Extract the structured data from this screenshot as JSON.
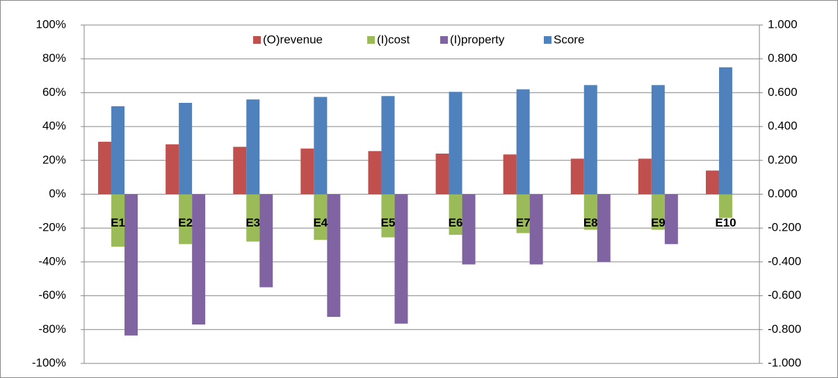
{
  "chart_data": {
    "type": "bar",
    "categories": [
      "E1",
      "E2",
      "E3",
      "E4",
      "E5",
      "E6",
      "E7",
      "E8",
      "E9",
      "E10"
    ],
    "series": [
      {
        "name": "(O)revenue",
        "color": "#c0504d",
        "values": [
          31,
          29.5,
          28,
          27,
          25.5,
          24,
          23.5,
          21,
          21,
          14
        ]
      },
      {
        "name": "(I)cost",
        "color": "#9bbb59",
        "values": [
          -31,
          -29.5,
          -28,
          -27,
          -25.5,
          -24,
          -23,
          -21,
          -21,
          -14
        ]
      },
      {
        "name": "(I)property",
        "color": "#8064a2",
        "values": [
          -83.5,
          -77,
          -55,
          -72.5,
          -76.5,
          -41.5,
          -41.5,
          -40,
          -29.5,
          0
        ]
      },
      {
        "name": "Score",
        "color": "#4f81bd",
        "axis": "y2",
        "values": [
          0.52,
          0.54,
          0.56,
          0.575,
          0.58,
          0.605,
          0.62,
          0.645,
          0.645,
          0.75
        ]
      }
    ],
    "ylim": [
      -100,
      100
    ],
    "yticks": [
      {
        "value": -100,
        "label": "-100%"
      },
      {
        "value": -80,
        "label": "-80%"
      },
      {
        "value": -60,
        "label": "-60%"
      },
      {
        "value": -40,
        "label": "-40%"
      },
      {
        "value": -20,
        "label": "-20%"
      },
      {
        "value": 0,
        "label": "0%"
      },
      {
        "value": 20,
        "label": "20%"
      },
      {
        "value": 40,
        "label": "40%"
      },
      {
        "value": 60,
        "label": "60%"
      },
      {
        "value": 80,
        "label": "80%"
      },
      {
        "value": 100,
        "label": "100%"
      }
    ],
    "y2lim": [
      -1,
      1
    ],
    "y2ticks": [
      {
        "value": -1,
        "label": "-1.000"
      },
      {
        "value": -0.8,
        "label": "-0.800"
      },
      {
        "value": -0.6,
        "label": "-0.600"
      },
      {
        "value": -0.4,
        "label": "-0.400"
      },
      {
        "value": -0.2,
        "label": "-0.200"
      },
      {
        "value": 0,
        "label": "0.000"
      },
      {
        "value": 0.2,
        "label": "0.200"
      },
      {
        "value": 0.4,
        "label": "0.400"
      },
      {
        "value": 0.6,
        "label": "0.600"
      },
      {
        "value": 0.8,
        "label": "0.800"
      },
      {
        "value": 1,
        "label": "1.000"
      }
    ],
    "grid": true,
    "legend": "top"
  }
}
